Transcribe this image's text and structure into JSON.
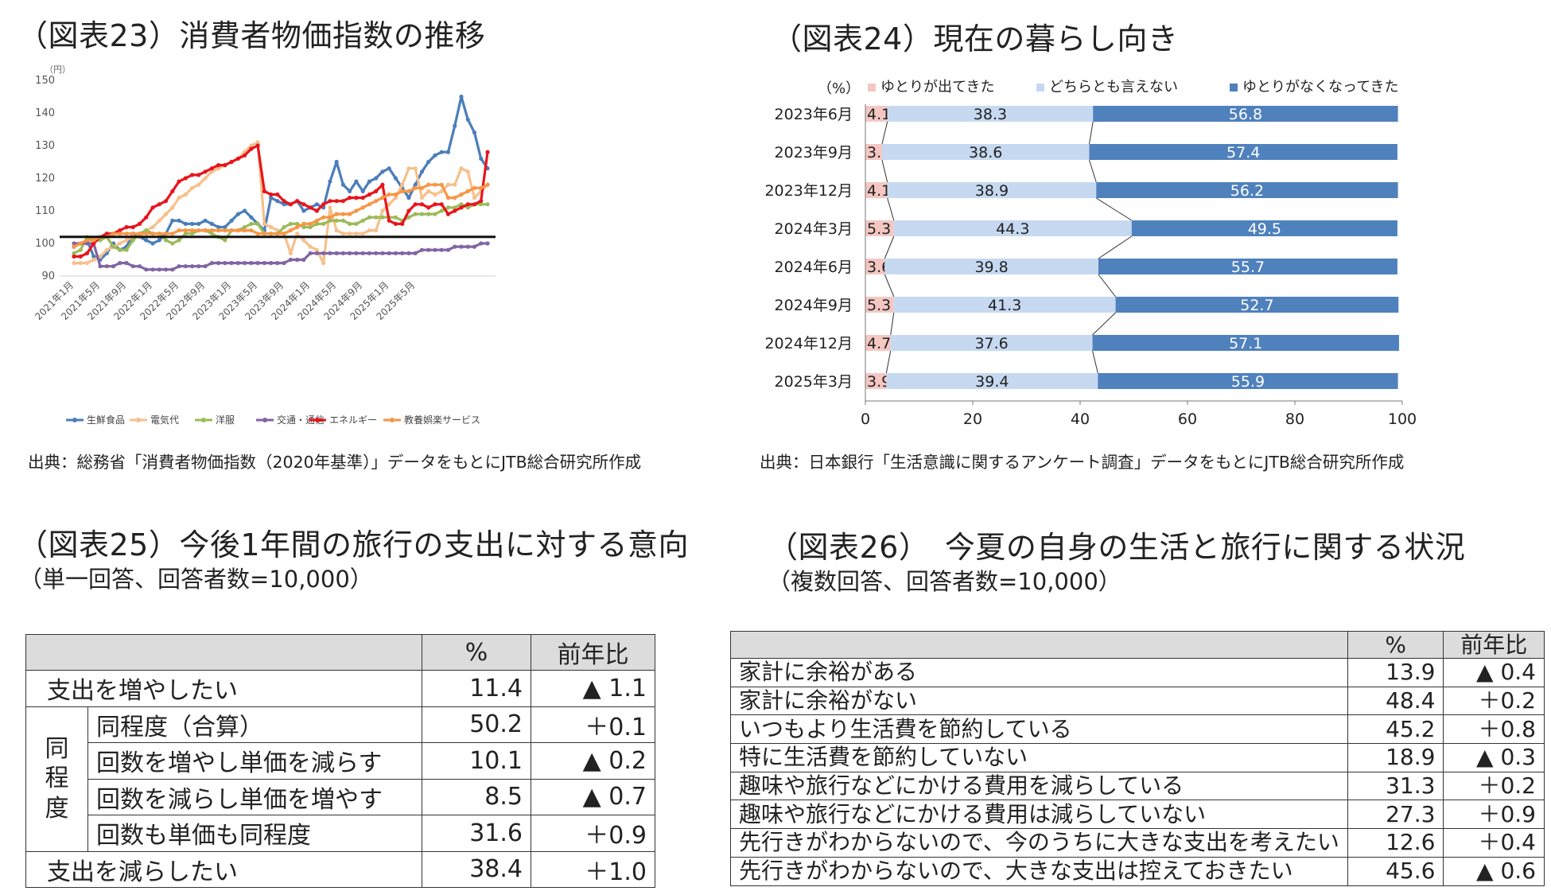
{
  "fig23": {
    "title": "（図表23）消費者物価指数の推移",
    "source": "出典：総務省「消費者物価指数（2020年基準）」データをもとにJTB総合研究所作成"
  },
  "fig24": {
    "title": "（図表24）現在の暮らし向き",
    "source": "出典：日本銀行「生活意識に関するアンケート調査」データをもとにJTB総合研究所作成"
  },
  "fig25": {
    "title": "（図表25）今後1年間の旅行の支出に対する意向",
    "subtitle": "（単一回答、回答者数=10,000）",
    "header": [
      "",
      "%",
      "前年比"
    ],
    "group_label": [
      "同",
      "程",
      "度"
    ],
    "rows": [
      {
        "label": "支出を増やしたい",
        "pct": "11.4",
        "yoy": "▲ 1.1"
      },
      {
        "label": "同程度（合算）",
        "pct": "50.2",
        "yoy": "＋0.1"
      },
      {
        "label": "回数を増やし単価を減らす",
        "pct": "10.1",
        "yoy": "▲ 0.2"
      },
      {
        "label": "回数を減らし単価を増やす",
        "pct": "8.5",
        "yoy": "▲ 0.7"
      },
      {
        "label": "回数も単価も同程度",
        "pct": "31.6",
        "yoy": "＋0.9"
      },
      {
        "label": "支出を減らしたい",
        "pct": "38.4",
        "yoy": "＋1.0"
      }
    ]
  },
  "fig26": {
    "title": "（図表26）　今夏の自身の生活と旅行に関する状況",
    "subtitle": "（複数回答、回答者数=10,000）",
    "header": [
      "",
      "%",
      "前年比"
    ],
    "rows": [
      {
        "label": "家計に余裕がある",
        "pct": "13.9",
        "yoy": "▲ 0.4"
      },
      {
        "label": "家計に余裕がない",
        "pct": "48.4",
        "yoy": "＋0.2"
      },
      {
        "label": "いつもより生活費を節約している",
        "pct": "45.2",
        "yoy": "＋0.8"
      },
      {
        "label": "特に生活費を節約していない",
        "pct": "18.9",
        "yoy": "▲ 0.3"
      },
      {
        "label": "趣味や旅行などにかける費用を減らしている",
        "pct": "31.3",
        "yoy": "＋0.2"
      },
      {
        "label": "趣味や旅行などにかける費用は減らしていない",
        "pct": "27.3",
        "yoy": "＋0.9"
      },
      {
        "label": "先行きがわからないので、今のうちに大きな支出を考えたい",
        "pct": "12.6",
        "yoy": "＋0.4"
      },
      {
        "label": "先行きがわからないので、大きな支出は控えておきたい",
        "pct": "45.6",
        "yoy": "▲ 0.6"
      }
    ]
  },
  "chart_data": [
    {
      "type": "line",
      "title": "（図表23）消費者物価指数の推移",
      "ylabel": "（円）",
      "ylim": [
        90,
        150
      ],
      "yticks": [
        90,
        100,
        110,
        120,
        130,
        140,
        150
      ],
      "reference_line": 102,
      "x_tick_labels": [
        "2021年1月",
        "2021年5月",
        "2021年9月",
        "2022年1月",
        "2022年5月",
        "2022年9月",
        "2023年1月",
        "2023年5月",
        "2023年9月",
        "2024年1月",
        "2024年5月",
        "2024年9月",
        "2025年1月",
        "2025年5月"
      ],
      "x_tick_step": 4,
      "series": [
        {
          "name": "生鮮食品",
          "color": "#4a7ebb",
          "values": [
            99,
            100,
            101,
            96,
            95,
            97,
            100,
            98,
            99,
            103,
            102,
            101,
            100,
            101,
            103,
            107,
            107,
            106,
            106,
            106,
            107,
            106,
            105,
            105,
            107,
            109,
            110,
            108,
            106,
            104,
            114,
            113,
            112,
            112,
            113,
            110,
            111,
            112,
            111,
            119,
            125,
            118,
            116,
            119,
            116,
            119,
            120,
            122,
            123,
            120,
            117,
            114,
            118,
            122,
            125,
            127,
            128,
            128,
            136,
            145,
            138,
            134,
            126,
            123
          ]
        },
        {
          "name": "電気代",
          "color": "#f6c08c",
          "values": [
            94,
            94,
            94,
            95,
            96,
            98,
            99,
            100,
            101,
            102,
            102,
            104,
            105,
            107,
            109,
            111,
            114,
            115,
            117,
            118,
            120,
            122,
            123,
            124,
            125,
            126,
            128,
            130,
            131,
            106,
            105,
            104,
            103,
            97,
            103,
            101,
            99,
            98,
            94,
            111,
            104,
            103,
            103,
            103,
            103,
            104,
            104,
            110,
            112,
            114,
            118,
            123,
            123,
            114,
            116,
            115,
            116,
            118,
            118,
            123,
            122,
            114,
            116,
            118
          ]
        },
        {
          "name": "洋服",
          "color": "#9bbb59",
          "values": [
            97,
            98,
            102,
            101,
            101,
            102,
            99,
            98,
            98,
            101,
            103,
            104,
            103,
            103,
            101,
            100,
            101,
            103,
            103,
            104,
            104,
            103,
            102,
            101,
            104,
            104,
            105,
            106,
            106,
            103,
            103,
            103,
            105,
            106,
            106,
            105,
            105,
            106,
            106,
            107,
            107,
            107,
            106,
            106,
            107,
            108,
            108,
            108,
            108,
            108,
            107,
            108,
            109,
            109,
            109,
            109,
            110,
            111,
            111,
            112,
            111,
            112,
            112,
            112
          ]
        },
        {
          "name": "交通・通信",
          "color": "#8064a2",
          "values": [
            100,
            100,
            100,
            100,
            93,
            93,
            93,
            94,
            94,
            93,
            93,
            92,
            92,
            92,
            92,
            92,
            93,
            93,
            93,
            93,
            93,
            94,
            94,
            94,
            94,
            94,
            94,
            94,
            94,
            94,
            94,
            94,
            94,
            95,
            95,
            95,
            97,
            97,
            97,
            97,
            97,
            97,
            97,
            97,
            97,
            97,
            97,
            97,
            97,
            97,
            97,
            97,
            97,
            98,
            98,
            98,
            98,
            98,
            99,
            99,
            99,
            99,
            100,
            100
          ]
        },
        {
          "name": "エネルギー",
          "color": "#e8141c",
          "values": [
            96,
            96,
            97,
            100,
            102,
            103,
            103,
            104,
            105,
            105,
            106,
            108,
            111,
            112,
            113,
            116,
            119,
            120,
            121,
            121,
            122,
            123,
            124,
            124,
            125,
            126,
            127,
            129,
            130,
            116,
            115,
            115,
            113,
            112,
            113,
            112,
            111,
            110,
            112,
            113,
            113,
            113,
            114,
            114,
            114,
            115,
            116,
            118,
            107,
            106,
            106,
            110,
            112,
            112,
            111,
            112,
            112,
            109,
            110,
            111,
            112,
            112,
            113,
            128
          ]
        },
        {
          "name": "教養娯楽サービス",
          "color": "#f79646",
          "values": [
            99,
            100,
            101,
            101,
            102,
            102,
            103,
            103,
            103,
            103,
            103,
            103,
            103,
            103,
            103,
            103,
            104,
            104,
            104,
            104,
            104,
            104,
            104,
            104,
            104,
            104,
            104,
            104,
            103,
            103,
            103,
            103,
            103,
            104,
            105,
            106,
            106,
            107,
            108,
            108,
            109,
            109,
            109,
            110,
            111,
            112,
            113,
            114,
            115,
            115,
            116,
            116,
            117,
            117,
            118,
            118,
            118,
            114,
            114,
            115,
            116,
            117,
            117,
            118
          ]
        }
      ]
    },
    {
      "type": "bar",
      "stacked": true,
      "orientation": "horizontal",
      "title": "（図表24）現在の暮らし向き",
      "unit_label": "（%）",
      "xlim": [
        0,
        100
      ],
      "xticks": [
        0,
        20,
        40,
        60,
        80,
        100
      ],
      "categories": [
        "2023年6月",
        "2023年9月",
        "2023年12月",
        "2024年3月",
        "2024年6月",
        "2024年9月",
        "2024年12月",
        "2025年3月"
      ],
      "series": [
        {
          "name": "ゆとりが出てきた",
          "color": "#f4c7c3",
          "values": [
            4.1,
            3.1,
            4.1,
            5.3,
            3.6,
            5.3,
            4.7,
            3.9
          ]
        },
        {
          "name": "どちらとも言えない",
          "color": "#c6d9f1",
          "values": [
            38.3,
            38.6,
            38.9,
            44.3,
            39.8,
            41.3,
            37.6,
            39.4
          ]
        },
        {
          "name": "ゆとりがなくなってきた",
          "color": "#4f81bd",
          "values": [
            56.8,
            57.4,
            56.2,
            49.5,
            55.7,
            52.7,
            57.1,
            55.9
          ]
        }
      ]
    }
  ]
}
